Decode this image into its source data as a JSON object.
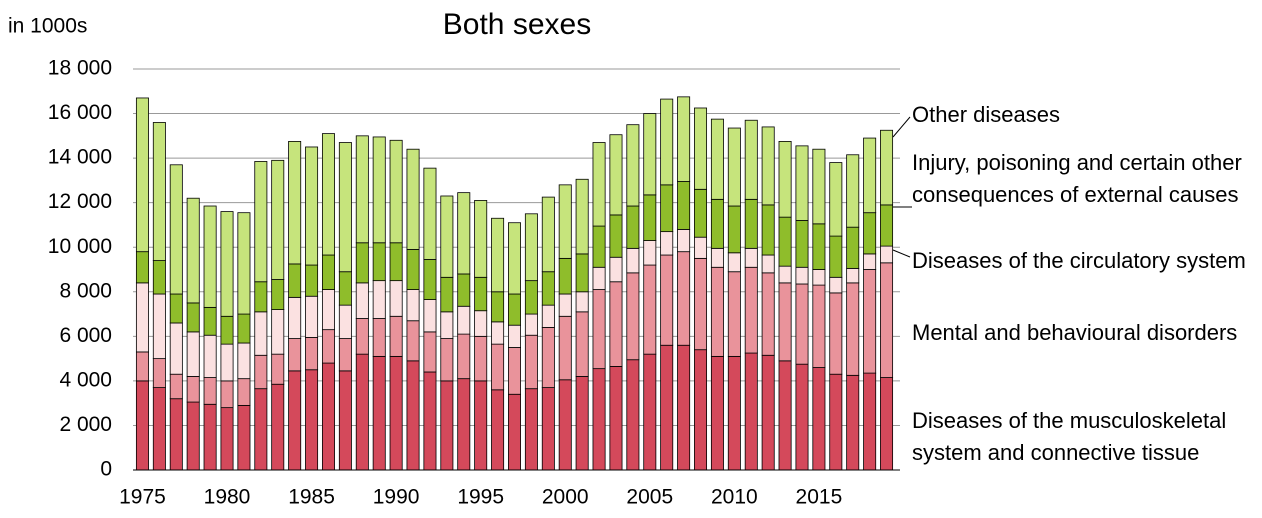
{
  "chart_data": {
    "type": "stacked-bar",
    "title": "Both sexes",
    "y_label": "in 1000s",
    "x": [
      1975,
      1976,
      1977,
      1978,
      1979,
      1980,
      1981,
      1982,
      1983,
      1984,
      1985,
      1986,
      1987,
      1988,
      1989,
      1990,
      1991,
      1992,
      1993,
      1994,
      1995,
      1996,
      1997,
      1998,
      1999,
      2000,
      2001,
      2002,
      2003,
      2004,
      2005,
      2006,
      2007,
      2008,
      2009,
      2010,
      2011,
      2012,
      2013,
      2014,
      2015,
      2016,
      2017,
      2018,
      2019
    ],
    "xlim": [
      1974.5,
      2019.5
    ],
    "xticks": [
      1975,
      1980,
      1985,
      1990,
      1995,
      2000,
      2005,
      2010,
      2015
    ],
    "ylim": [
      0,
      18000
    ],
    "yticks": [
      0,
      {
        "value": 2000,
        "label": "2 000"
      },
      {
        "value": 4000,
        "label": "4 000"
      },
      {
        "value": 6000,
        "label": "6 000"
      },
      {
        "value": 8000,
        "label": "8 000"
      },
      {
        "value": 10000,
        "label": "10 000"
      },
      {
        "value": 12000,
        "label": "12 000"
      },
      {
        "value": 14000,
        "label": "14 000"
      },
      {
        "value": 16000,
        "label": "16 000"
      },
      {
        "value": 18000,
        "label": "18 000"
      }
    ],
    "grid": true,
    "series": [
      {
        "name": "Diseases of the musculoskeletal system and connective tissue",
        "color": "#d4495b",
        "values": [
          4000,
          3700,
          3200,
          3050,
          2950,
          2800,
          2900,
          3650,
          3850,
          4450,
          4500,
          4800,
          4450,
          5200,
          5100,
          5100,
          4900,
          4400,
          4000,
          4100,
          4000,
          3600,
          3400,
          3650,
          3700,
          4050,
          4200,
          4550,
          4650,
          4950,
          5200,
          5600,
          5600,
          5400,
          5100,
          5100,
          5250,
          5150,
          4900,
          4750,
          4600,
          4300,
          4250,
          4350,
          4150
        ]
      },
      {
        "name": "Mental and behavioural disorders",
        "color": "#e9939b",
        "values": [
          1300,
          1300,
          1100,
          1150,
          1200,
          1200,
          1200,
          1500,
          1350,
          1450,
          1450,
          1500,
          1450,
          1600,
          1700,
          1800,
          1800,
          1800,
          1900,
          2000,
          2000,
          2050,
          2100,
          2400,
          2700,
          2850,
          2900,
          3550,
          3800,
          3900,
          4000,
          4050,
          4200,
          4100,
          4000,
          3800,
          3850,
          3700,
          3500,
          3600,
          3700,
          3650,
          4150,
          4650,
          5150
        ]
      },
      {
        "name": "Diseases of the circulatory system",
        "color": "#fbe1e1",
        "values": [
          3100,
          2900,
          2300,
          2000,
          1900,
          1650,
          1600,
          1950,
          2000,
          1850,
          1850,
          1800,
          1500,
          1600,
          1700,
          1600,
          1400,
          1450,
          1200,
          1250,
          1150,
          1000,
          1000,
          950,
          1000,
          1000,
          900,
          1000,
          1100,
          1100,
          1100,
          1050,
          1000,
          950,
          850,
          850,
          850,
          800,
          750,
          750,
          700,
          700,
          650,
          700,
          750
        ]
      },
      {
        "name": "Injury, poisoning and certain other consequences of external causes",
        "color": "#8fbd2b",
        "values": [
          1400,
          1500,
          1300,
          1300,
          1250,
          1250,
          1300,
          1350,
          1350,
          1500,
          1400,
          1550,
          1500,
          1800,
          1700,
          1700,
          1800,
          1800,
          1550,
          1450,
          1500,
          1350,
          1400,
          1500,
          1500,
          1600,
          1700,
          1850,
          1900,
          1900,
          2050,
          2100,
          2150,
          2150,
          2200,
          2100,
          2200,
          2250,
          2200,
          2100,
          2050,
          1850,
          1850,
          1850,
          1850
        ]
      },
      {
        "name": "Other diseases",
        "color": "#c6e47c",
        "values": [
          6900,
          6200,
          5800,
          4700,
          4550,
          4700,
          4550,
          5400,
          5350,
          5500,
          5300,
          5450,
          5800,
          4800,
          4750,
          4600,
          4500,
          4100,
          3650,
          3650,
          3450,
          3300,
          3200,
          3000,
          3350,
          3300,
          3350,
          3750,
          3600,
          3650,
          3650,
          3850,
          3800,
          3650,
          3600,
          3500,
          3550,
          3500,
          3400,
          3350,
          3350,
          3300,
          3250,
          3350,
          3350
        ]
      }
    ]
  }
}
